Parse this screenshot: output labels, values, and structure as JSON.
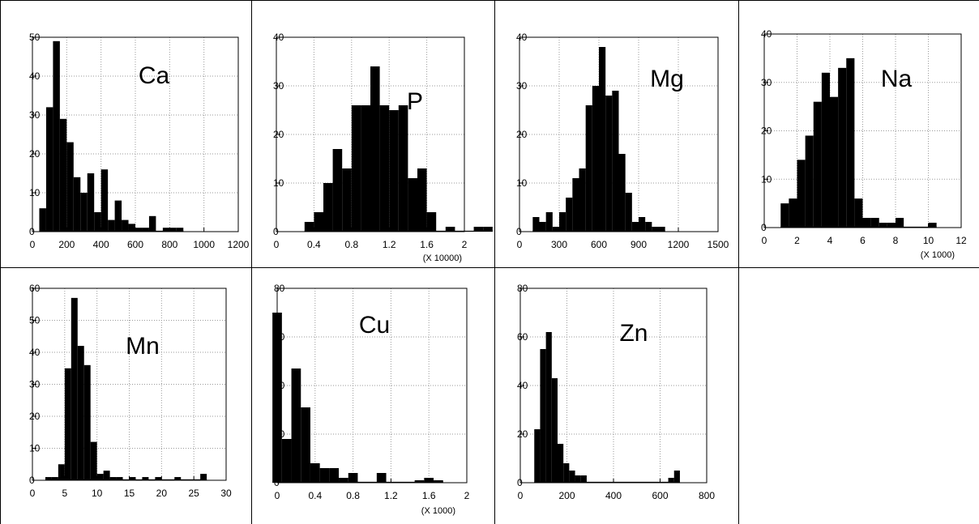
{
  "figure": {
    "colors": {
      "bar": "#000000",
      "grid": "#9a9a9a",
      "frame": "#000000",
      "background": "#ffffff"
    }
  },
  "chart_data": [
    {
      "type": "bar",
      "title": "Ca",
      "xlabel": "",
      "ylabel": "",
      "multiplier_label": "",
      "grid": true,
      "xlim": [
        0,
        1200
      ],
      "ylim": [
        0,
        50
      ],
      "xticks": [
        0,
        200,
        400,
        600,
        800,
        1000,
        1200
      ],
      "xtick_labels": [
        "0",
        "200",
        "400",
        "600",
        "800",
        "1000",
        "1200"
      ],
      "yticks": [
        0,
        10,
        20,
        30,
        40,
        50
      ],
      "ytick_labels": [
        "0",
        "10",
        "20",
        "30",
        "40",
        "50"
      ],
      "bin_start": 40,
      "bin_width": 40,
      "values": [
        6,
        32,
        49,
        29,
        23,
        14,
        10,
        15,
        5,
        16,
        3,
        8,
        3,
        2,
        1,
        1,
        4,
        0,
        1,
        1,
        1
      ]
    },
    {
      "type": "bar",
      "title": "P",
      "xlabel": "",
      "ylabel": "",
      "multiplier_label": "(X 10000)",
      "grid": true,
      "xlim": [
        0,
        2
      ],
      "ylim": [
        0,
        40
      ],
      "xticks": [
        0,
        0.4,
        0.8,
        1.2,
        1.6,
        2
      ],
      "xtick_labels": [
        "0",
        "0.4",
        "0.8",
        "1.2",
        "1.6",
        "2"
      ],
      "yticks": [
        0,
        10,
        20,
        30,
        40
      ],
      "ytick_labels": [
        "0",
        "10",
        "20",
        "30",
        "40"
      ],
      "bin_start": 0.3,
      "bin_width": 0.1,
      "values": [
        2,
        4,
        10,
        17,
        13,
        26,
        26,
        34,
        26,
        25,
        26,
        11,
        13,
        4,
        0,
        1,
        0,
        0,
        1,
        1
      ]
    },
    {
      "type": "bar",
      "title": "Mg",
      "xlabel": "",
      "ylabel": "",
      "multiplier_label": "",
      "grid": true,
      "xlim": [
        0,
        1500
      ],
      "ylim": [
        0,
        40
      ],
      "xticks": [
        0,
        300,
        600,
        900,
        1200,
        1500
      ],
      "xtick_labels": [
        "0",
        "300",
        "600",
        "900",
        "1200",
        "1500"
      ],
      "yticks": [
        0,
        10,
        20,
        30,
        40
      ],
      "ytick_labels": [
        "0",
        "10",
        "20",
        "30",
        "40"
      ],
      "bin_start": 100,
      "bin_width": 50,
      "values": [
        3,
        2,
        4,
        1,
        4,
        7,
        11,
        13,
        26,
        30,
        38,
        28,
        29,
        16,
        8,
        2,
        3,
        2,
        1,
        1
      ]
    },
    {
      "type": "bar",
      "title": "Na",
      "xlabel": "",
      "ylabel": "",
      "multiplier_label": "(X 1000)",
      "grid": true,
      "xlim": [
        0,
        12
      ],
      "ylim": [
        0,
        40
      ],
      "xticks": [
        0,
        2,
        4,
        6,
        8,
        10,
        12
      ],
      "xtick_labels": [
        "0",
        "2",
        "4",
        "6",
        "8",
        "10",
        "12"
      ],
      "yticks": [
        0,
        10,
        20,
        30,
        40
      ],
      "ytick_labels": [
        "0",
        "10",
        "20",
        "30",
        "40"
      ],
      "bin_start": 1,
      "bin_width": 0.5,
      "values": [
        5,
        6,
        14,
        19,
        26,
        32,
        27,
        33,
        35,
        6,
        2,
        2,
        1,
        1,
        2,
        0,
        0,
        0,
        1
      ]
    },
    {
      "type": "bar",
      "title": "Mn",
      "xlabel": "",
      "ylabel": "",
      "multiplier_label": "",
      "grid": true,
      "xlim": [
        0,
        30
      ],
      "ylim": [
        0,
        60
      ],
      "xticks": [
        0,
        5,
        10,
        15,
        20,
        25,
        30
      ],
      "xtick_labels": [
        "0",
        "5",
        "10",
        "15",
        "20",
        "25",
        "30"
      ],
      "yticks": [
        0,
        10,
        20,
        30,
        40,
        50,
        60
      ],
      "ytick_labels": [
        "0",
        "10",
        "20",
        "30",
        "40",
        "50",
        "60"
      ],
      "bin_start": 2,
      "bin_width": 1,
      "values": [
        1,
        1,
        5,
        35,
        57,
        42,
        36,
        12,
        2,
        3,
        1,
        1,
        0,
        1,
        0,
        1,
        0,
        1,
        0,
        0,
        1,
        0,
        0,
        0,
        2
      ]
    },
    {
      "type": "bar",
      "title": "Cu",
      "xlabel": "",
      "ylabel": "",
      "multiplier_label": "(X 1000)",
      "grid": true,
      "xlim": [
        0,
        2
      ],
      "ylim": [
        0,
        80
      ],
      "xticks": [
        0,
        0.4,
        0.8,
        1.2,
        1.6,
        2
      ],
      "xtick_labels": [
        "0",
        "0.4",
        "0.8",
        "1.2",
        "1.6",
        "2"
      ],
      "yticks": [
        0,
        20,
        40,
        60,
        80
      ],
      "ytick_labels": [
        "0",
        "20",
        "40",
        "60",
        "80"
      ],
      "bin_start": -0.05,
      "bin_width": 0.1,
      "values": [
        70,
        18,
        47,
        31,
        8,
        6,
        6,
        2,
        4,
        0,
        0,
        4,
        0,
        0,
        0,
        1,
        2,
        1
      ]
    },
    {
      "type": "bar",
      "title": "Zn",
      "xlabel": "",
      "ylabel": "",
      "multiplier_label": "",
      "grid": true,
      "xlim": [
        0,
        800
      ],
      "ylim": [
        0,
        80
      ],
      "xticks": [
        0,
        200,
        400,
        600,
        800
      ],
      "xtick_labels": [
        "0",
        "200",
        "400",
        "600",
        "800"
      ],
      "yticks": [
        0,
        20,
        40,
        60,
        80
      ],
      "ytick_labels": [
        "0",
        "20",
        "40",
        "60",
        "80"
      ],
      "bin_start": 60,
      "bin_width": 25,
      "values": [
        22,
        55,
        62,
        43,
        16,
        8,
        5,
        3,
        3,
        0,
        0,
        0,
        0,
        0,
        0,
        0,
        0,
        0,
        0,
        0,
        0,
        0,
        0,
        2,
        5
      ]
    }
  ]
}
